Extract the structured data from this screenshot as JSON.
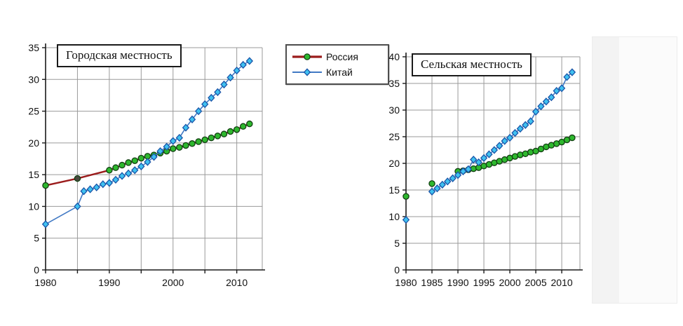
{
  "page": {
    "background": "#ffffff"
  },
  "legend": {
    "items": [
      {
        "label": "Россия",
        "line_color": "#9b1c1c",
        "line_width": 3.2,
        "marker": "circle",
        "marker_fill": "#2eb82e",
        "marker_stroke": "#123f12"
      },
      {
        "label": "Китай",
        "line_color": "#4179c4",
        "line_width": 2,
        "marker": "diamond",
        "marker_fill": "#3fc1f0",
        "marker_stroke": "#1a55a8"
      }
    ]
  },
  "chart_data": [
    {
      "type": "line",
      "title": "Городская местность",
      "xlim": [
        1980,
        2014
      ],
      "ylim": [
        0,
        35
      ],
      "y_ticks": [
        0,
        5,
        10,
        15,
        20,
        25,
        30,
        35
      ],
      "x_ticks": [
        1980,
        1985,
        1990,
        1995,
        2000,
        2005,
        2010
      ],
      "x_label_years": [
        1980,
        1990,
        2000,
        2010
      ],
      "grid": true,
      "legend_position": "outside-right",
      "series": [
        {
          "name": "Россия",
          "line_color": "#9b1c1c",
          "line_width": 2.4,
          "marker": "circle",
          "marker_fill": "#2eb82e",
          "marker_stroke": "#123f12",
          "marker_overrides": [
            {
              "x": 1985,
              "fill": "#4a4a40"
            }
          ],
          "segments": [
            [
              [
                1980,
                13.3
              ],
              [
                1985,
                14.4
              ],
              [
                1990,
                15.7
              ],
              [
                1991,
                16.1
              ],
              [
                1992,
                16.5
              ],
              [
                1993,
                16.9
              ],
              [
                1994,
                17.2
              ],
              [
                1995,
                17.6
              ],
              [
                1996,
                17.9
              ],
              [
                1997,
                18.1
              ],
              [
                1998,
                18.4
              ],
              [
                1999,
                18.7
              ],
              [
                2000,
                19.1
              ],
              [
                2001,
                19.3
              ],
              [
                2002,
                19.6
              ],
              [
                2003,
                19.9
              ],
              [
                2004,
                20.2
              ],
              [
                2005,
                20.5
              ],
              [
                2006,
                20.8
              ],
              [
                2007,
                21.1
              ],
              [
                2008,
                21.4
              ],
              [
                2009,
                21.8
              ],
              [
                2010,
                22.1
              ],
              [
                2011,
                22.6
              ],
              [
                2012,
                23.0
              ]
            ]
          ]
        },
        {
          "name": "Китай",
          "line_color": "#4179c4",
          "line_width": 1.6,
          "marker": "diamond",
          "marker_fill": "#3fc1f0",
          "marker_stroke": "#1a55a8",
          "marker_overrides": [],
          "segments": [
            [
              [
                1980,
                7.2
              ],
              [
                1985,
                10.0
              ],
              [
                1986,
                12.4
              ],
              [
                1987,
                12.7
              ],
              [
                1988,
                13.0
              ],
              [
                1989,
                13.5
              ],
              [
                1990,
                13.7
              ],
              [
                1991,
                14.2
              ],
              [
                1992,
                14.8
              ],
              [
                1993,
                15.2
              ],
              [
                1994,
                15.7
              ],
              [
                1995,
                16.3
              ],
              [
                1996,
                17.0
              ],
              [
                1997,
                17.8
              ],
              [
                1998,
                18.7
              ],
              [
                1999,
                19.4
              ],
              [
                2000,
                20.3
              ],
              [
                2001,
                20.8
              ],
              [
                2002,
                22.4
              ],
              [
                2003,
                23.7
              ],
              [
                2004,
                25.0
              ],
              [
                2005,
                26.1
              ],
              [
                2006,
                27.1
              ],
              [
                2007,
                28.0
              ],
              [
                2008,
                29.2
              ],
              [
                2009,
                30.3
              ],
              [
                2010,
                31.4
              ],
              [
                2011,
                32.3
              ],
              [
                2012,
                32.9
              ]
            ]
          ]
        }
      ]
    },
    {
      "type": "line",
      "title": "Сельская местность",
      "xlim": [
        1980,
        2013.5
      ],
      "ylim": [
        0,
        40
      ],
      "y_ticks": [
        0,
        5,
        10,
        15,
        20,
        25,
        30,
        35,
        40
      ],
      "x_ticks": [
        1980,
        1985,
        1990,
        1995,
        2000,
        2005,
        2010
      ],
      "x_label_years": [
        1980,
        1985,
        1990,
        1995,
        2000,
        2005,
        2010
      ],
      "grid": true,
      "series": [
        {
          "name": "Россия",
          "line_color": "#9b1c1c",
          "line_width": 2.2,
          "marker": "circle",
          "marker_fill": "#2eb82e",
          "marker_stroke": "#123f12",
          "marker_overrides": [],
          "segments": [
            [
              [
                1980,
                13.8
              ]
            ],
            [
              [
                1985,
                16.2
              ]
            ],
            [
              [
                1990,
                18.5
              ],
              [
                1991,
                18.6
              ],
              [
                1992,
                18.8
              ],
              [
                1993,
                19.0
              ],
              [
                1994,
                19.2
              ],
              [
                1995,
                19.5
              ],
              [
                1996,
                19.8
              ],
              [
                1997,
                20.1
              ],
              [
                1998,
                20.4
              ],
              [
                1999,
                20.7
              ],
              [
                2000,
                21.0
              ],
              [
                2001,
                21.3
              ],
              [
                2002,
                21.6
              ],
              [
                2003,
                21.8
              ],
              [
                2004,
                22.1
              ],
              [
                2005,
                22.3
              ],
              [
                2006,
                22.7
              ],
              [
                2007,
                23.1
              ],
              [
                2008,
                23.4
              ],
              [
                2009,
                23.7
              ],
              [
                2010,
                24.0
              ],
              [
                2011,
                24.4
              ],
              [
                2012,
                24.8
              ]
            ]
          ]
        },
        {
          "name": "Китай",
          "line_color": "#4179c4",
          "line_width": 1.6,
          "marker": "diamond",
          "marker_fill": "#3fc1f0",
          "marker_stroke": "#1a55a8",
          "marker_overrides": [],
          "segments": [
            [
              [
                1980,
                9.4
              ]
            ],
            [
              [
                1985,
                14.7
              ],
              [
                1986,
                15.3
              ],
              [
                1987,
                16.0
              ],
              [
                1988,
                16.6
              ],
              [
                1989,
                17.2
              ],
              [
                1990,
                17.8
              ],
              [
                1991,
                18.5
              ],
              [
                1992,
                18.9
              ],
              [
                1993,
                20.7
              ],
              [
                1994,
                20.2
              ],
              [
                1995,
                21.0
              ],
              [
                1996,
                21.7
              ],
              [
                1997,
                22.5
              ],
              [
                1998,
                23.3
              ],
              [
                1999,
                24.2
              ],
              [
                2000,
                24.8
              ],
              [
                2001,
                25.7
              ],
              [
                2002,
                26.5
              ],
              [
                2003,
                27.2
              ],
              [
                2004,
                27.9
              ],
              [
                2005,
                29.7
              ],
              [
                2006,
                30.7
              ],
              [
                2007,
                31.6
              ],
              [
                2008,
                32.4
              ],
              [
                2009,
                33.6
              ],
              [
                2010,
                34.1
              ],
              [
                2011,
                36.2
              ],
              [
                2012,
                37.1
              ]
            ]
          ]
        }
      ]
    }
  ]
}
